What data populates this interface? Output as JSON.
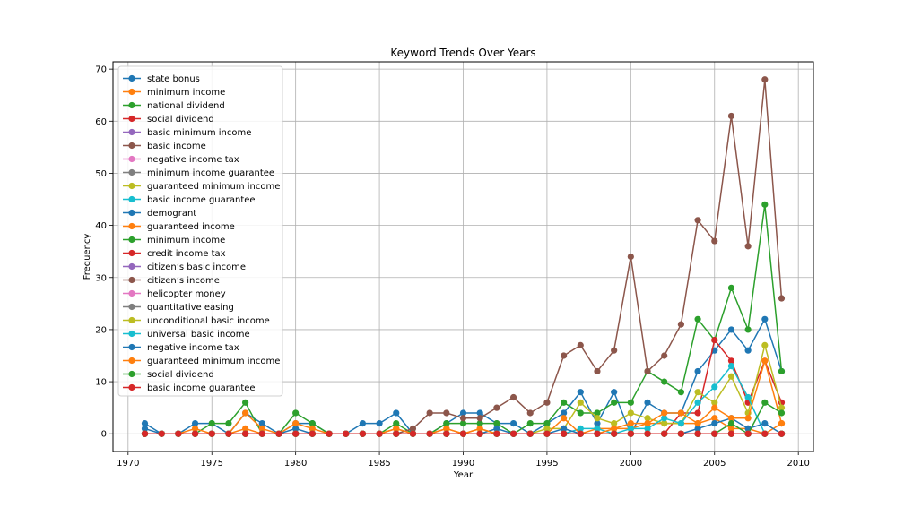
{
  "chart_data": {
    "type": "line",
    "title": "Keyword Trends Over Years",
    "xlabel": "Year",
    "ylabel": "Frequency",
    "xlim": [
      1969.1,
      2010.9
    ],
    "ylim": [
      -3.4,
      71.4
    ],
    "xticks": [
      1970,
      1975,
      1980,
      1985,
      1990,
      1995,
      2000,
      2005,
      2010
    ],
    "yticks": [
      0,
      10,
      20,
      30,
      40,
      50,
      60,
      70
    ],
    "grid": true,
    "legend_position": "top-left",
    "x": [
      1971,
      1972,
      1973,
      1974,
      1975,
      1976,
      1977,
      1978,
      1979,
      1980,
      1981,
      1982,
      1983,
      1984,
      1985,
      1986,
      1987,
      1988,
      1989,
      1990,
      1991,
      1992,
      1993,
      1994,
      1995,
      1996,
      1997,
      1998,
      1999,
      2000,
      2001,
      2002,
      2003,
      2004,
      2005,
      2006,
      2007,
      2008,
      2009
    ],
    "series": [
      {
        "name": "state bonus",
        "color": "#1f77b4",
        "values": [
          2,
          0,
          0,
          2,
          2,
          0,
          4,
          2,
          0,
          2,
          2,
          0,
          0,
          2,
          2,
          4,
          0,
          0,
          2,
          4,
          4,
          2,
          2,
          0,
          2,
          4,
          8,
          2,
          8,
          0,
          6,
          4,
          4,
          12,
          16,
          20,
          16,
          22,
          12
        ]
      },
      {
        "name": "minimum income",
        "color": "#ff7f0e",
        "values": [
          0,
          0,
          0,
          0,
          0,
          0,
          1,
          0,
          0,
          0,
          0,
          0,
          0,
          0,
          0,
          1,
          0,
          0,
          1,
          0,
          1,
          0,
          0,
          0,
          0,
          0,
          0,
          1,
          1,
          1,
          2,
          2,
          2,
          2,
          3,
          1,
          1,
          0,
          2
        ]
      },
      {
        "name": "national dividend",
        "color": "#2ca02c",
        "values": [
          0,
          0,
          0,
          0,
          2,
          2,
          6,
          0,
          0,
          4,
          2,
          0,
          0,
          0,
          0,
          2,
          0,
          0,
          2,
          2,
          2,
          2,
          0,
          2,
          2,
          6,
          4,
          4,
          6,
          6,
          12,
          10,
          8,
          22,
          18,
          28,
          20,
          44,
          12
        ]
      },
      {
        "name": "social dividend",
        "color": "#d62728",
        "values": [
          0,
          0,
          0,
          0,
          0,
          0,
          0,
          0,
          0,
          0,
          0,
          0,
          0,
          0,
          0,
          0,
          0,
          0,
          0,
          0,
          0,
          0,
          0,
          0,
          0,
          0,
          0,
          0,
          0,
          0,
          0,
          0,
          4,
          4,
          18,
          14,
          6,
          14,
          6
        ]
      },
      {
        "name": "basic minimum income",
        "color": "#9467bd",
        "values": [
          0,
          0,
          0,
          0,
          0,
          0,
          0,
          0,
          0,
          0,
          0,
          0,
          0,
          0,
          0,
          0,
          0,
          0,
          0,
          0,
          0,
          0,
          0,
          0,
          0,
          0,
          0,
          0,
          0,
          0,
          0,
          0,
          0,
          0,
          0,
          0,
          0,
          0,
          0
        ]
      },
      {
        "name": "basic income",
        "color": "#8c564b",
        "values": [
          0,
          0,
          0,
          0,
          0,
          0,
          0,
          0,
          0,
          0,
          0,
          0,
          0,
          0,
          0,
          0,
          1,
          4,
          4,
          3,
          3,
          5,
          7,
          4,
          6,
          15,
          17,
          12,
          16,
          34,
          12,
          15,
          21,
          41,
          37,
          61,
          36,
          68,
          26
        ]
      },
      {
        "name": "negative income tax",
        "color": "#e377c2",
        "values": [
          0,
          0,
          0,
          0,
          0,
          0,
          0,
          0,
          0,
          0,
          0,
          0,
          0,
          0,
          0,
          0,
          0,
          0,
          0,
          0,
          0,
          0,
          0,
          0,
          0,
          0,
          0,
          0,
          0,
          0,
          0,
          0,
          0,
          0,
          0,
          0,
          0,
          0,
          0
        ]
      },
      {
        "name": "minimum income guarantee",
        "color": "#7f7f7f",
        "values": [
          0,
          0,
          0,
          0,
          0,
          0,
          0,
          0,
          0,
          0,
          0,
          0,
          0,
          0,
          0,
          0,
          0,
          0,
          0,
          0,
          0,
          0,
          0,
          0,
          0,
          0,
          0,
          0,
          0,
          0,
          0,
          0,
          0,
          0,
          0,
          0,
          0,
          0,
          0
        ]
      },
      {
        "name": "guaranteed minimum income",
        "color": "#bcbd22",
        "values": [
          0,
          0,
          0,
          0,
          0,
          0,
          0,
          0,
          0,
          0,
          0,
          0,
          0,
          0,
          0,
          0,
          0,
          0,
          0,
          0,
          0,
          0,
          0,
          0,
          1,
          1,
          6,
          3,
          2,
          4,
          3,
          2,
          2,
          8,
          6,
          11,
          4,
          17,
          5
        ]
      },
      {
        "name": "basic income guarantee",
        "color": "#17becf",
        "values": [
          0,
          0,
          0,
          0,
          0,
          0,
          0,
          0,
          0,
          0,
          0,
          0,
          0,
          0,
          0,
          0,
          0,
          0,
          0,
          0,
          0,
          0,
          0,
          0,
          0,
          0,
          1,
          1,
          0,
          1,
          1,
          3,
          2,
          6,
          9,
          13,
          7,
          0,
          0
        ]
      },
      {
        "name": "demogrant",
        "color": "#1f77b4",
        "values": [
          1,
          0,
          0,
          0,
          0,
          0,
          0,
          0,
          0,
          1,
          0,
          0,
          0,
          0,
          0,
          0,
          0,
          0,
          0,
          0,
          0,
          1,
          0,
          0,
          0,
          1,
          0,
          0,
          0,
          0,
          0,
          0,
          0,
          1,
          2,
          3,
          1,
          2,
          0
        ]
      },
      {
        "name": "guaranteed income",
        "color": "#ff7f0e",
        "values": [
          0,
          0,
          0,
          1,
          0,
          0,
          4,
          1,
          0,
          2,
          1,
          0,
          0,
          0,
          0,
          1,
          0,
          0,
          1,
          0,
          1,
          0,
          0,
          0,
          0,
          3,
          0,
          0,
          1,
          2,
          2,
          4,
          4,
          2,
          5,
          3,
          3,
          14,
          2
        ]
      },
      {
        "name": "minimum income",
        "color": "#2ca02c",
        "values": [
          0,
          0,
          0,
          0,
          0,
          0,
          0,
          0,
          0,
          0,
          0,
          0,
          0,
          0,
          0,
          0,
          0,
          0,
          0,
          0,
          0,
          0,
          0,
          0,
          0,
          0,
          0,
          0,
          0,
          0,
          0,
          0,
          0,
          0,
          0,
          2,
          0,
          6,
          4
        ]
      },
      {
        "name": "credit income tax",
        "color": "#d62728",
        "values": [
          0,
          0,
          0,
          0,
          0,
          0,
          0,
          0,
          0,
          0,
          0,
          0,
          0,
          0,
          0,
          0,
          0,
          0,
          0,
          0,
          0,
          0,
          0,
          0,
          0,
          0,
          0,
          0,
          0,
          0,
          0,
          0,
          0,
          0,
          0,
          0,
          0,
          0,
          0
        ]
      },
      {
        "name": "citizen’s basic income",
        "color": "#9467bd",
        "values": [
          0,
          0,
          0,
          0,
          0,
          0,
          0,
          0,
          0,
          0,
          0,
          0,
          0,
          0,
          0,
          0,
          0,
          0,
          0,
          0,
          0,
          0,
          0,
          0,
          0,
          0,
          0,
          0,
          0,
          0,
          0,
          0,
          0,
          0,
          0,
          0,
          0,
          0,
          0
        ]
      },
      {
        "name": "citizen’s income",
        "color": "#8c564b",
        "values": [
          0,
          0,
          0,
          0,
          0,
          0,
          0,
          0,
          0,
          0,
          0,
          0,
          0,
          0,
          0,
          0,
          0,
          0,
          0,
          0,
          0,
          0,
          0,
          0,
          0,
          0,
          0,
          0,
          0,
          0,
          0,
          0,
          0,
          0,
          0,
          0,
          0,
          0,
          0
        ]
      },
      {
        "name": "helicopter money",
        "color": "#e377c2",
        "values": [
          0,
          0,
          0,
          0,
          0,
          0,
          0,
          0,
          0,
          0,
          0,
          0,
          0,
          0,
          0,
          0,
          0,
          0,
          0,
          0,
          0,
          0,
          0,
          0,
          0,
          0,
          0,
          0,
          0,
          0,
          0,
          0,
          0,
          0,
          0,
          0,
          0,
          0,
          0
        ]
      },
      {
        "name": "quantitative easing",
        "color": "#7f7f7f",
        "values": [
          0,
          0,
          0,
          0,
          0,
          0,
          0,
          0,
          0,
          0,
          0,
          0,
          0,
          0,
          0,
          0,
          0,
          0,
          0,
          0,
          0,
          0,
          0,
          0,
          0,
          0,
          0,
          0,
          0,
          0,
          0,
          0,
          0,
          0,
          0,
          0,
          0,
          0,
          0
        ]
      },
      {
        "name": "unconditional basic income",
        "color": "#bcbd22",
        "values": [
          0,
          0,
          0,
          0,
          0,
          0,
          0,
          0,
          0,
          0,
          0,
          0,
          0,
          0,
          0,
          0,
          0,
          0,
          0,
          0,
          0,
          0,
          0,
          0,
          0,
          0,
          0,
          0,
          0,
          0,
          0,
          0,
          0,
          0,
          0,
          0,
          0,
          0,
          0
        ]
      },
      {
        "name": "universal basic income",
        "color": "#17becf",
        "values": [
          0,
          0,
          0,
          0,
          0,
          0,
          0,
          0,
          0,
          0,
          0,
          0,
          0,
          0,
          0,
          0,
          0,
          0,
          0,
          0,
          0,
          0,
          0,
          0,
          0,
          0,
          0,
          0,
          0,
          0,
          0,
          0,
          0,
          0,
          0,
          0,
          0,
          0,
          0
        ]
      },
      {
        "name": "negative income tax",
        "color": "#1f77b4",
        "values": [
          0,
          0,
          0,
          0,
          0,
          0,
          0,
          0,
          0,
          0,
          0,
          0,
          0,
          0,
          0,
          0,
          0,
          0,
          0,
          0,
          0,
          0,
          0,
          0,
          0,
          0,
          0,
          0,
          0,
          0,
          0,
          0,
          0,
          0,
          0,
          0,
          0,
          0,
          0
        ]
      },
      {
        "name": "guaranteed minimum income",
        "color": "#ff7f0e",
        "values": [
          0,
          0,
          0,
          0,
          0,
          0,
          0,
          0,
          0,
          0,
          0,
          0,
          0,
          0,
          0,
          0,
          0,
          0,
          0,
          0,
          0,
          0,
          0,
          0,
          0,
          0,
          0,
          0,
          0,
          0,
          0,
          0,
          0,
          0,
          0,
          0,
          0,
          0,
          0
        ]
      },
      {
        "name": "social dividend",
        "color": "#2ca02c",
        "values": [
          0,
          0,
          0,
          0,
          0,
          0,
          0,
          0,
          0,
          0,
          0,
          0,
          0,
          0,
          0,
          0,
          0,
          0,
          0,
          0,
          0,
          0,
          0,
          0,
          0,
          0,
          0,
          0,
          0,
          0,
          0,
          0,
          0,
          0,
          0,
          0,
          0,
          0,
          0
        ]
      },
      {
        "name": "basic income guarantee",
        "color": "#d62728",
        "values": [
          0,
          0,
          0,
          0,
          0,
          0,
          0,
          0,
          0,
          0,
          0,
          0,
          0,
          0,
          0,
          0,
          0,
          0,
          0,
          0,
          0,
          0,
          0,
          0,
          0,
          0,
          0,
          0,
          0,
          0,
          0,
          0,
          0,
          0,
          0,
          0,
          0,
          0,
          0
        ]
      }
    ]
  }
}
